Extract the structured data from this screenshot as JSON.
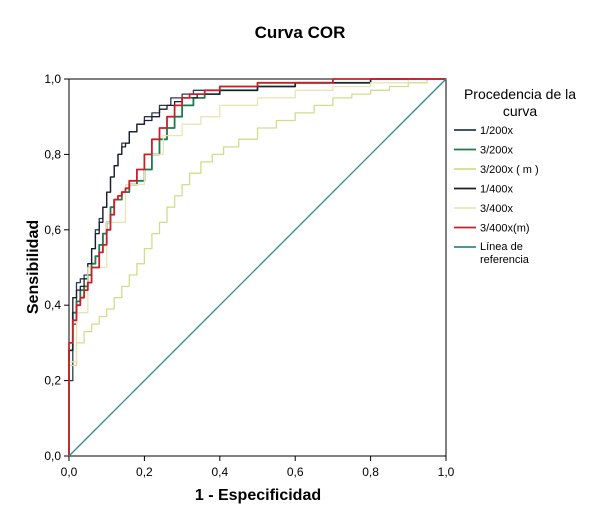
{
  "chart_data": {
    "type": "line",
    "title": "Curva COR",
    "xlabel": "1 - Especificidad",
    "ylabel": "Sensibilidad",
    "xlim": [
      0,
      1
    ],
    "ylim": [
      0,
      1
    ],
    "x_ticks": [
      "0,0",
      "0,2",
      "0,4",
      "0,6",
      "0,8",
      "1,0"
    ],
    "y_ticks": [
      "0,0",
      "0,2",
      "0,4",
      "0,6",
      "0,8",
      "1,0"
    ],
    "grid": false,
    "legend": {
      "title_lines": [
        "Procedencia de la",
        "curva"
      ],
      "placement": "right"
    },
    "series": [
      {
        "name": "1/200x",
        "color": "#2b3a55",
        "x": [
          0,
          0,
          0.01,
          0.01,
          0.02,
          0.02,
          0.03,
          0.04,
          0.05,
          0.06,
          0.07,
          0.08,
          0.09,
          0.1,
          0.11,
          0.12,
          0.13,
          0.14,
          0.16,
          0.18,
          0.2,
          0.22,
          0.24,
          0.27,
          0.3,
          0.33,
          0.36,
          0.4,
          0.5,
          0.6,
          0.7,
          0.8,
          0.9,
          1.0
        ],
        "y": [
          0,
          0.13,
          0.2,
          0.27,
          0.35,
          0.42,
          0.46,
          0.47,
          0.48,
          0.5,
          0.55,
          0.6,
          0.63,
          0.66,
          0.7,
          0.74,
          0.77,
          0.8,
          0.83,
          0.86,
          0.88,
          0.9,
          0.91,
          0.93,
          0.95,
          0.96,
          0.97,
          0.97,
          0.98,
          0.98,
          0.99,
          0.99,
          1.0,
          1.0
        ]
      },
      {
        "name": "3/200x",
        "color": "#1f7a4c",
        "x": [
          0,
          0,
          0.01,
          0.02,
          0.03,
          0.04,
          0.05,
          0.06,
          0.07,
          0.08,
          0.09,
          0.1,
          0.11,
          0.12,
          0.14,
          0.16,
          0.18,
          0.2,
          0.22,
          0.24,
          0.26,
          0.28,
          0.3,
          0.33,
          0.36,
          0.4,
          0.5,
          0.6,
          0.7,
          0.8,
          0.9,
          1.0
        ],
        "y": [
          0,
          0.11,
          0.28,
          0.38,
          0.41,
          0.44,
          0.45,
          0.48,
          0.51,
          0.53,
          0.56,
          0.59,
          0.62,
          0.66,
          0.68,
          0.7,
          0.72,
          0.73,
          0.76,
          0.8,
          0.84,
          0.87,
          0.9,
          0.93,
          0.95,
          0.96,
          0.97,
          0.98,
          0.99,
          0.99,
          1.0,
          1.0
        ]
      },
      {
        "name": "3/200x ( m )",
        "color": "#d3dc8c",
        "x": [
          0,
          0,
          0.02,
          0.04,
          0.06,
          0.08,
          0.1,
          0.12,
          0.14,
          0.16,
          0.18,
          0.2,
          0.22,
          0.24,
          0.26,
          0.28,
          0.3,
          0.32,
          0.35,
          0.38,
          0.41,
          0.45,
          0.5,
          0.55,
          0.6,
          0.65,
          0.7,
          0.75,
          0.8,
          0.85,
          0.9,
          0.95,
          1.0
        ],
        "y": [
          0,
          0.09,
          0.24,
          0.3,
          0.33,
          0.35,
          0.37,
          0.39,
          0.42,
          0.45,
          0.48,
          0.51,
          0.55,
          0.59,
          0.62,
          0.66,
          0.69,
          0.72,
          0.75,
          0.78,
          0.8,
          0.82,
          0.84,
          0.87,
          0.89,
          0.91,
          0.93,
          0.95,
          0.96,
          0.97,
          0.98,
          0.99,
          1.0
        ]
      },
      {
        "name": "1/400x",
        "color": "#1c1c2e",
        "x": [
          0,
          0,
          0.01,
          0.02,
          0.03,
          0.04,
          0.05,
          0.06,
          0.07,
          0.08,
          0.09,
          0.1,
          0.11,
          0.12,
          0.13,
          0.14,
          0.15,
          0.16,
          0.18,
          0.2,
          0.22,
          0.24,
          0.26,
          0.28,
          0.3,
          0.34,
          0.4,
          0.5,
          0.6,
          0.7,
          0.8,
          0.9,
          1.0
        ],
        "y": [
          0,
          0.15,
          0.28,
          0.42,
          0.44,
          0.45,
          0.47,
          0.51,
          0.55,
          0.59,
          0.62,
          0.66,
          0.7,
          0.74,
          0.77,
          0.8,
          0.82,
          0.83,
          0.86,
          0.88,
          0.89,
          0.9,
          0.92,
          0.93,
          0.94,
          0.95,
          0.96,
          0.97,
          0.98,
          0.99,
          0.99,
          1.0,
          1.0
        ]
      },
      {
        "name": "3/400x",
        "color": "#e6e6b4",
        "x": [
          0,
          0.02,
          0.05,
          0.1,
          0.15,
          0.2,
          0.25,
          0.3,
          0.35,
          0.4,
          0.5,
          0.6,
          0.7,
          0.8,
          0.9,
          1.0
        ],
        "y": [
          0,
          0.25,
          0.38,
          0.5,
          0.62,
          0.72,
          0.8,
          0.85,
          0.88,
          0.9,
          0.93,
          0.95,
          0.97,
          0.98,
          0.99,
          1.0
        ]
      },
      {
        "name": "3/400x(m)",
        "color": "#c8202a",
        "x": [
          0,
          0,
          0.01,
          0.02,
          0.03,
          0.04,
          0.05,
          0.06,
          0.08,
          0.09,
          0.1,
          0.11,
          0.12,
          0.13,
          0.14,
          0.15,
          0.16,
          0.18,
          0.2,
          0.22,
          0.24,
          0.26,
          0.28,
          0.3,
          0.32,
          0.34,
          0.36,
          0.4,
          0.5,
          0.6,
          0.7,
          0.8,
          0.9,
          1.0
        ],
        "y": [
          0,
          0.1,
          0.3,
          0.36,
          0.4,
          0.42,
          0.44,
          0.46,
          0.5,
          0.54,
          0.56,
          0.6,
          0.64,
          0.68,
          0.69,
          0.7,
          0.71,
          0.73,
          0.76,
          0.8,
          0.84,
          0.87,
          0.9,
          0.93,
          0.95,
          0.96,
          0.96,
          0.97,
          0.98,
          0.99,
          0.99,
          1.0,
          1.0,
          1.0
        ]
      },
      {
        "name": "Línea de referencia",
        "color": "#2e8b8b",
        "x": [
          0,
          1
        ],
        "y": [
          0,
          1
        ]
      }
    ]
  }
}
